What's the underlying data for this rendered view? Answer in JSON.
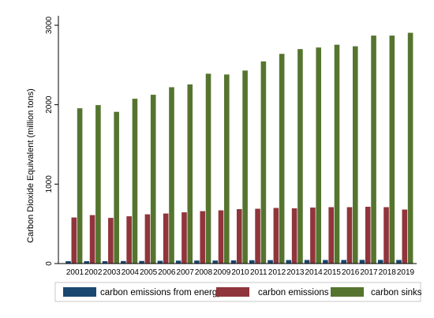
{
  "chart_data": {
    "type": "bar",
    "title": "",
    "xlabel": "",
    "ylabel": "Carbon Dioxide Equivalent (million tons)",
    "ylim": [
      0,
      3000
    ],
    "yticks": [
      0,
      1000,
      2000,
      3000
    ],
    "grid": false,
    "legend_position": "bottom",
    "categories": [
      "2001",
      "2002",
      "2003",
      "2004",
      "2005",
      "2006",
      "2007",
      "2008",
      "2009",
      "2010",
      "2011",
      "2012",
      "2013",
      "2014",
      "2015",
      "2016",
      "2017",
      "2018",
      "2019"
    ],
    "series": [
      {
        "name": "carbon emissions from energy",
        "color": "#1a476f",
        "values": [
          30,
          30,
          30,
          32,
          33,
          35,
          37,
          38,
          38,
          40,
          42,
          43,
          44,
          45,
          45,
          45,
          46,
          46,
          45
        ]
      },
      {
        "name": "carbon emissions",
        "color": "#90353b",
        "values": [
          580,
          610,
          575,
          595,
          620,
          630,
          645,
          660,
          670,
          685,
          690,
          700,
          695,
          705,
          710,
          710,
          715,
          710,
          680
        ]
      },
      {
        "name": "carbon sinks",
        "color": "#55752f",
        "values": [
          1955,
          1995,
          1910,
          2075,
          2125,
          2220,
          2255,
          2390,
          2380,
          2430,
          2545,
          2640,
          2700,
          2720,
          2755,
          2735,
          2870,
          2870,
          2905
        ]
      }
    ]
  }
}
